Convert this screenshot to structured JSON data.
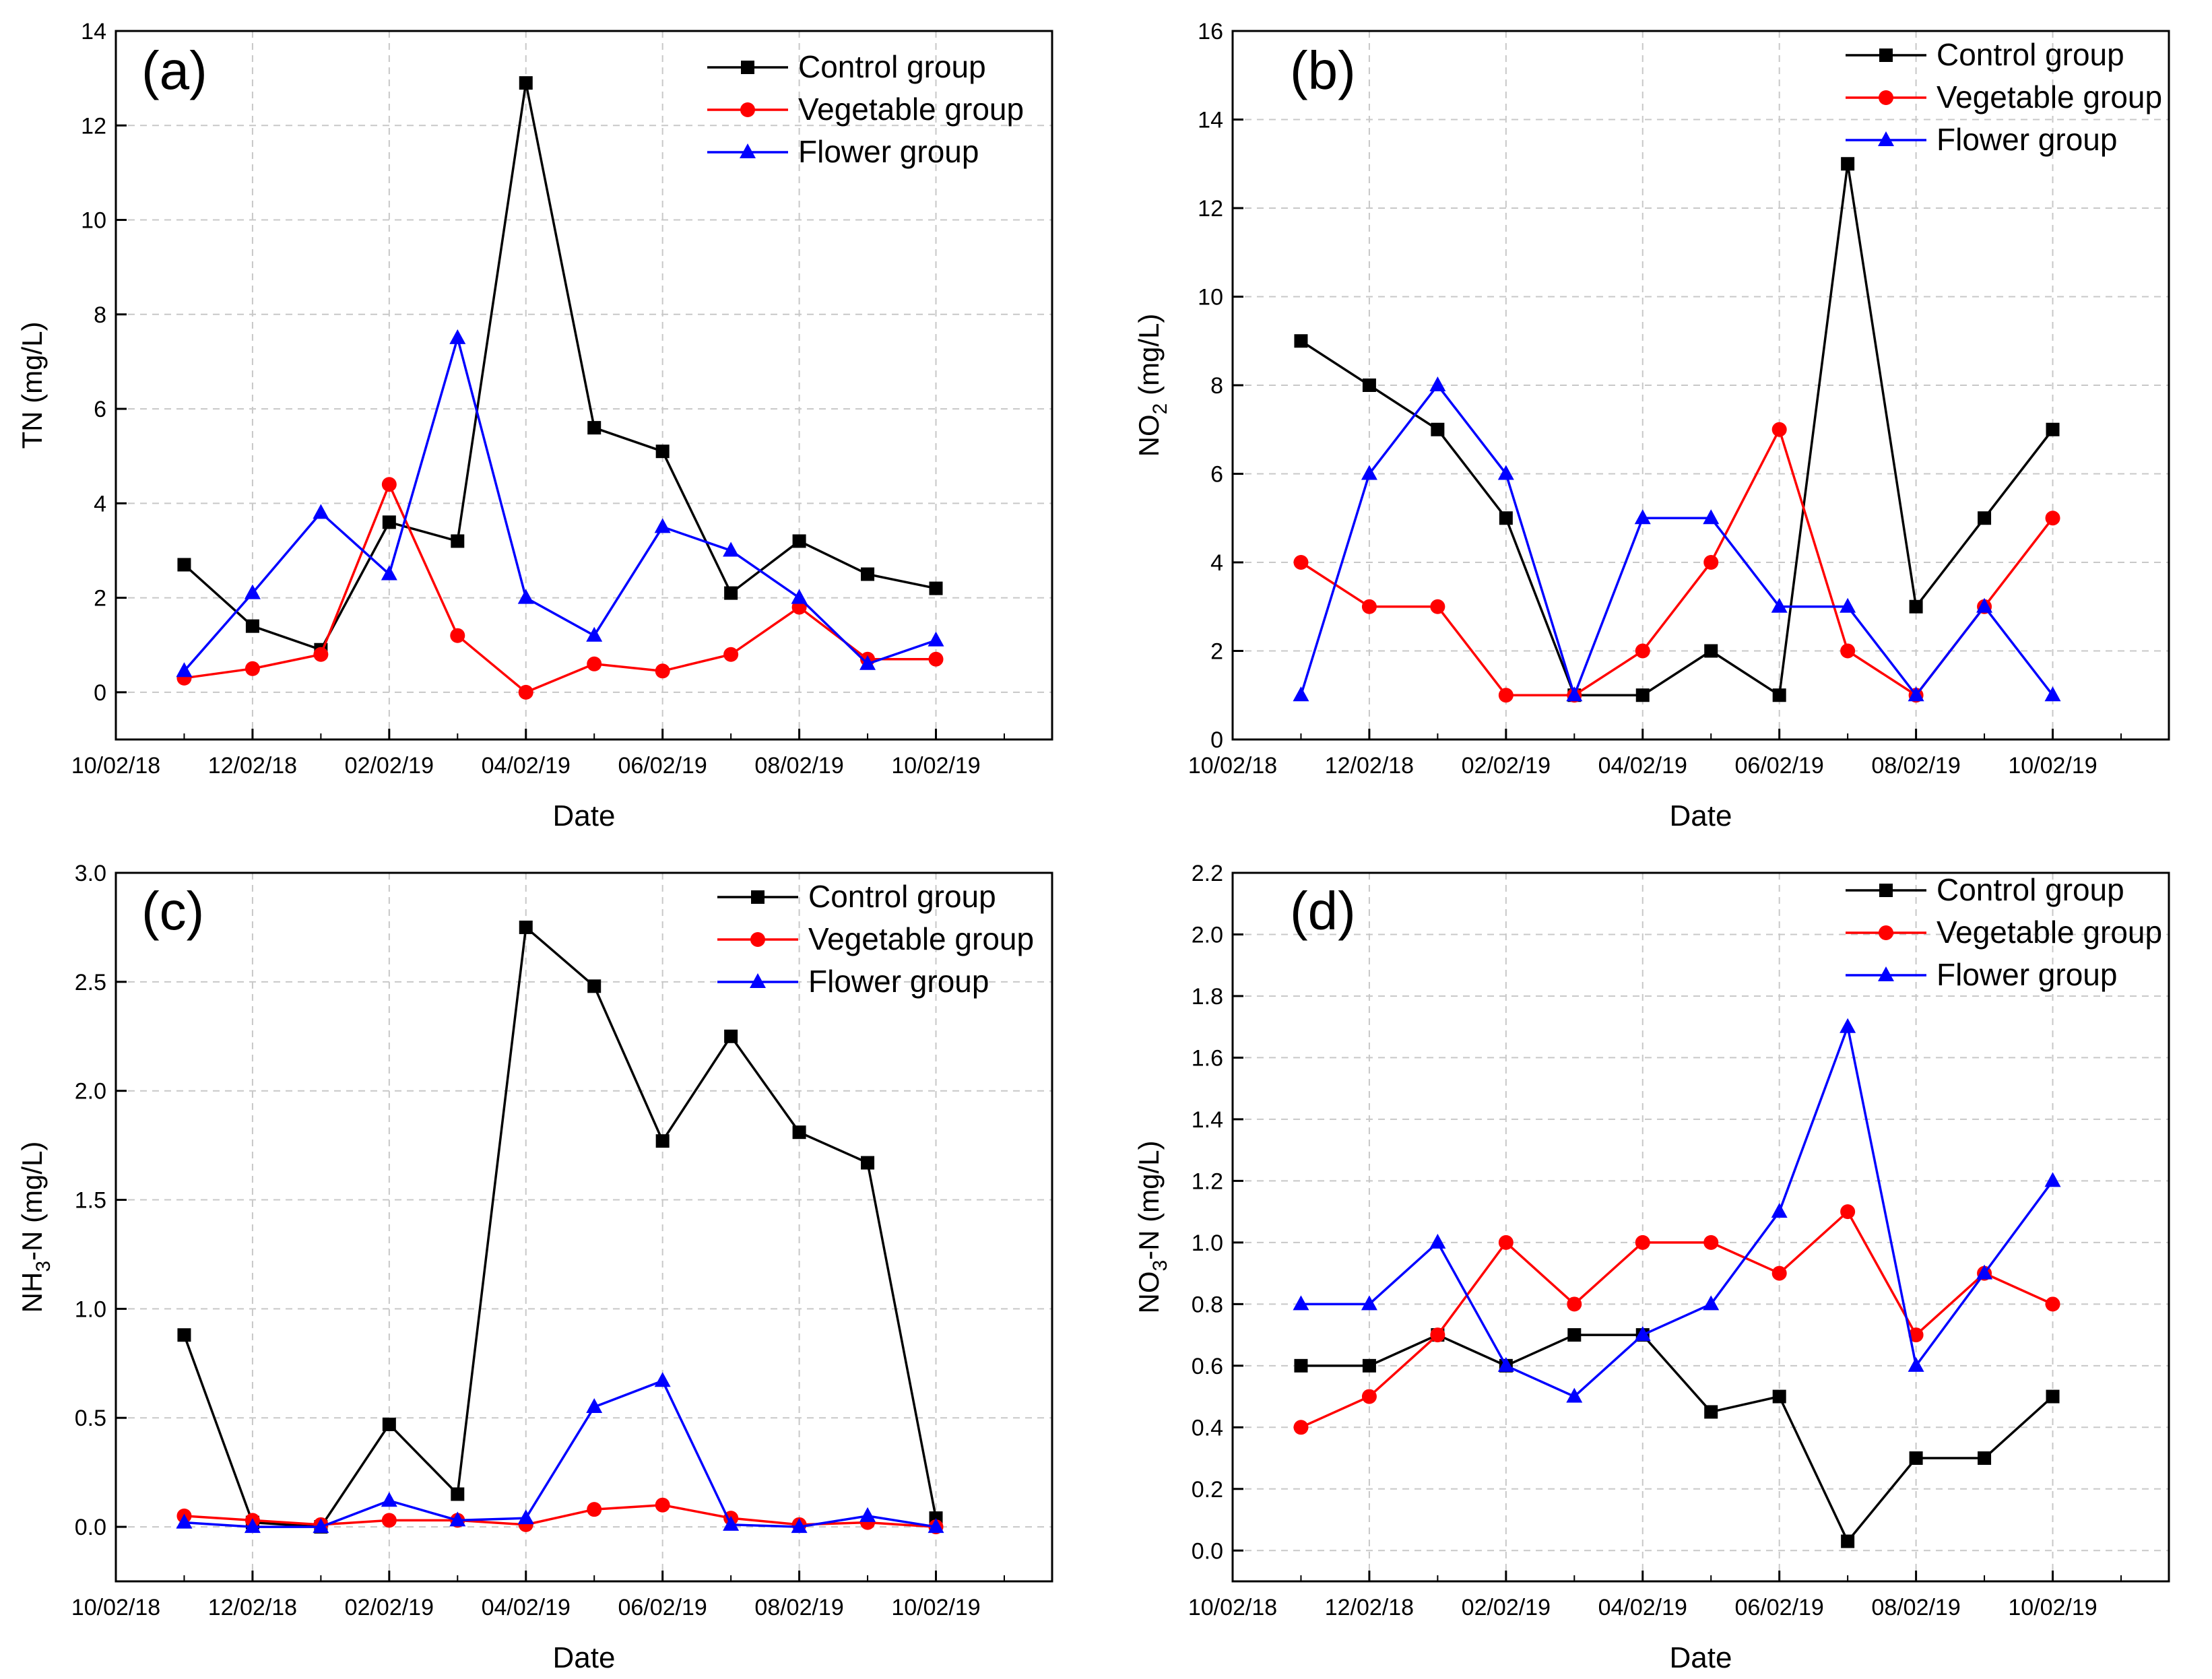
{
  "colors": {
    "control": "#000000",
    "vegetable": "#ff0000",
    "flower": "#0000ff",
    "grid": "#c8c8c8",
    "axis": "#000000"
  },
  "shared": {
    "xlabel": "Date",
    "x_tick_labels": [
      "10/02/18",
      "12/02/18",
      "02/02/19",
      "04/02/19",
      "06/02/19",
      "08/02/19",
      "10/02/19"
    ],
    "x_points": [
      "11/02/18",
      "12/02/18",
      "01/02/19",
      "02/02/19",
      "03/02/19",
      "04/02/19",
      "05/02/19",
      "06/02/19",
      "07/02/19",
      "08/02/19",
      "09/02/19",
      "10/02/19"
    ],
    "legend_labels": [
      "Control group",
      "Vegetable group",
      "Flower group"
    ]
  },
  "chart_data": [
    {
      "type": "line",
      "panel_label": "(a)",
      "ylabel": "TN (mg/L)",
      "ylim": [
        -1,
        14
      ],
      "yticks": [
        0,
        2,
        4,
        6,
        8,
        10,
        12,
        14
      ],
      "ytick_labels": [
        "0",
        "2",
        "4",
        "6",
        "8",
        "10",
        "12",
        "14"
      ],
      "series": [
        {
          "name": "Control group",
          "marker": "square",
          "values": [
            2.7,
            1.4,
            0.9,
            3.6,
            3.2,
            12.9,
            5.6,
            5.1,
            2.1,
            3.2,
            2.5,
            2.2
          ]
        },
        {
          "name": "Vegetable group",
          "marker": "circle",
          "values": [
            0.3,
            0.5,
            0.8,
            4.4,
            1.2,
            0.0,
            0.6,
            0.45,
            0.8,
            1.8,
            0.7,
            0.7
          ]
        },
        {
          "name": "Flower group",
          "marker": "triangle",
          "values": [
            0.45,
            2.1,
            3.8,
            2.5,
            7.5,
            2.0,
            1.2,
            3.5,
            3.0,
            2.0,
            0.6,
            1.1
          ]
        }
      ]
    },
    {
      "type": "line",
      "panel_label": "(b)",
      "ylabel": "NO",
      "ylabel_sub": "2",
      "ylabel_suffix": "(mg/L)",
      "ylim": [
        0,
        16
      ],
      "yticks": [
        0,
        2,
        4,
        6,
        8,
        10,
        12,
        14,
        16
      ],
      "ytick_labels": [
        "0",
        "2",
        "4",
        "6",
        "8",
        "10",
        "12",
        "14",
        "16"
      ],
      "series": [
        {
          "name": "Control group",
          "marker": "square",
          "values": [
            9,
            8,
            7,
            5,
            1,
            1,
            2,
            1,
            13,
            3,
            5,
            7
          ]
        },
        {
          "name": "Vegetable group",
          "marker": "circle",
          "values": [
            4,
            3,
            3,
            1,
            1,
            2,
            4,
            7,
            2,
            1,
            3,
            5
          ]
        },
        {
          "name": "Flower group",
          "marker": "triangle",
          "values": [
            1,
            6,
            8,
            6,
            1,
            5,
            5,
            3,
            3,
            1,
            3,
            1
          ]
        }
      ]
    },
    {
      "type": "line",
      "panel_label": "(c)",
      "ylabel": "NH",
      "ylabel_sub": "3",
      "ylabel_suffix": "-N (mg/L)",
      "ylim": [
        -0.25,
        3.0
      ],
      "yticks": [
        0,
        0.5,
        1.0,
        1.5,
        2.0,
        2.5,
        3.0
      ],
      "ytick_labels": [
        "0.0",
        "0.5",
        "1.0",
        "1.5",
        "2.0",
        "2.5",
        "3.0"
      ],
      "series": [
        {
          "name": "Control group",
          "marker": "square",
          "values": [
            0.88,
            0.02,
            0.0,
            0.47,
            0.15,
            2.75,
            2.48,
            1.77,
            2.25,
            1.81,
            1.67,
            0.04
          ]
        },
        {
          "name": "Vegetable group",
          "marker": "circle",
          "values": [
            0.05,
            0.03,
            0.01,
            0.03,
            0.03,
            0.01,
            0.08,
            0.1,
            0.04,
            0.01,
            0.02,
            0.0
          ]
        },
        {
          "name": "Flower group",
          "marker": "triangle",
          "values": [
            0.02,
            0.0,
            0.0,
            0.12,
            0.03,
            0.04,
            0.55,
            0.67,
            0.01,
            0.0,
            0.05,
            0.0
          ]
        }
      ]
    },
    {
      "type": "line",
      "panel_label": "(d)",
      "ylabel": "NO",
      "ylabel_sub": "3",
      "ylabel_suffix": "-N (mg/L)",
      "ylim": [
        -0.1,
        2.2
      ],
      "yticks": [
        0,
        0.2,
        0.4,
        0.6,
        0.8,
        1.0,
        1.2,
        1.4,
        1.6,
        1.8,
        2.0,
        2.2
      ],
      "ytick_labels": [
        "0.0",
        "0.2",
        "0.4",
        "0.6",
        "0.8",
        "1.0",
        "1.2",
        "1.4",
        "1.6",
        "1.8",
        "2.0",
        "2.2"
      ],
      "series": [
        {
          "name": "Control group",
          "marker": "square",
          "values": [
            0.6,
            0.6,
            0.7,
            0.6,
            0.7,
            0.7,
            0.45,
            0.5,
            0.03,
            0.3,
            0.3,
            0.5
          ]
        },
        {
          "name": "Vegetable group",
          "marker": "circle",
          "values": [
            0.4,
            0.5,
            0.7,
            1.0,
            0.8,
            1.0,
            1.0,
            0.9,
            1.1,
            0.7,
            0.9,
            0.8
          ]
        },
        {
          "name": "Flower group",
          "marker": "triangle",
          "values": [
            0.8,
            0.8,
            1.0,
            0.6,
            0.5,
            0.7,
            0.8,
            1.1,
            1.7,
            0.6,
            0.9,
            1.2
          ]
        }
      ]
    }
  ]
}
